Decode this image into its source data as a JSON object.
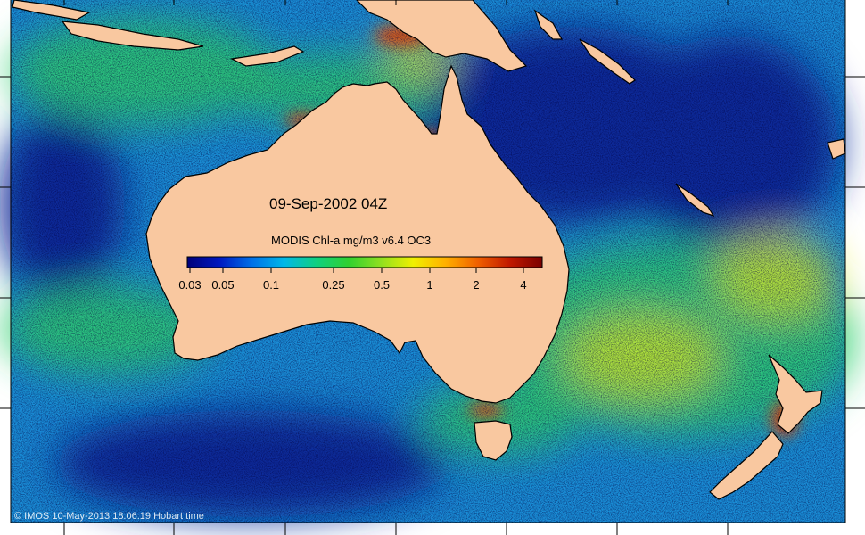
{
  "map": {
    "date_label": "09-Sep-2002 04Z",
    "legend_title": "MODIS Chl-a mg/m3 v6.4 OC3",
    "credit": "© IMOS 10-May-2013 18:06:19 Hobart time",
    "colorbar": {
      "tick_labels": [
        "0.03",
        "0.05",
        "0.1",
        "0.25",
        "0.5",
        "1",
        "2",
        "4"
      ],
      "colors": [
        "#00007a",
        "#0018c0",
        "#0070e8",
        "#00b8e8",
        "#10d080",
        "#30d030",
        "#90e020",
        "#f0f000",
        "#ffb000",
        "#f06000",
        "#c01800",
        "#7a0000"
      ]
    },
    "colors": {
      "land": "#f9c8a0",
      "ocean_low": "#0a2a9a",
      "ocean_mid": "#1a8fd8",
      "ocean_high": "#2fd070",
      "bloom": "#e8f020",
      "coast_high": "#e05010",
      "coastline": "#000000",
      "no_data": "#ffffff"
    }
  }
}
